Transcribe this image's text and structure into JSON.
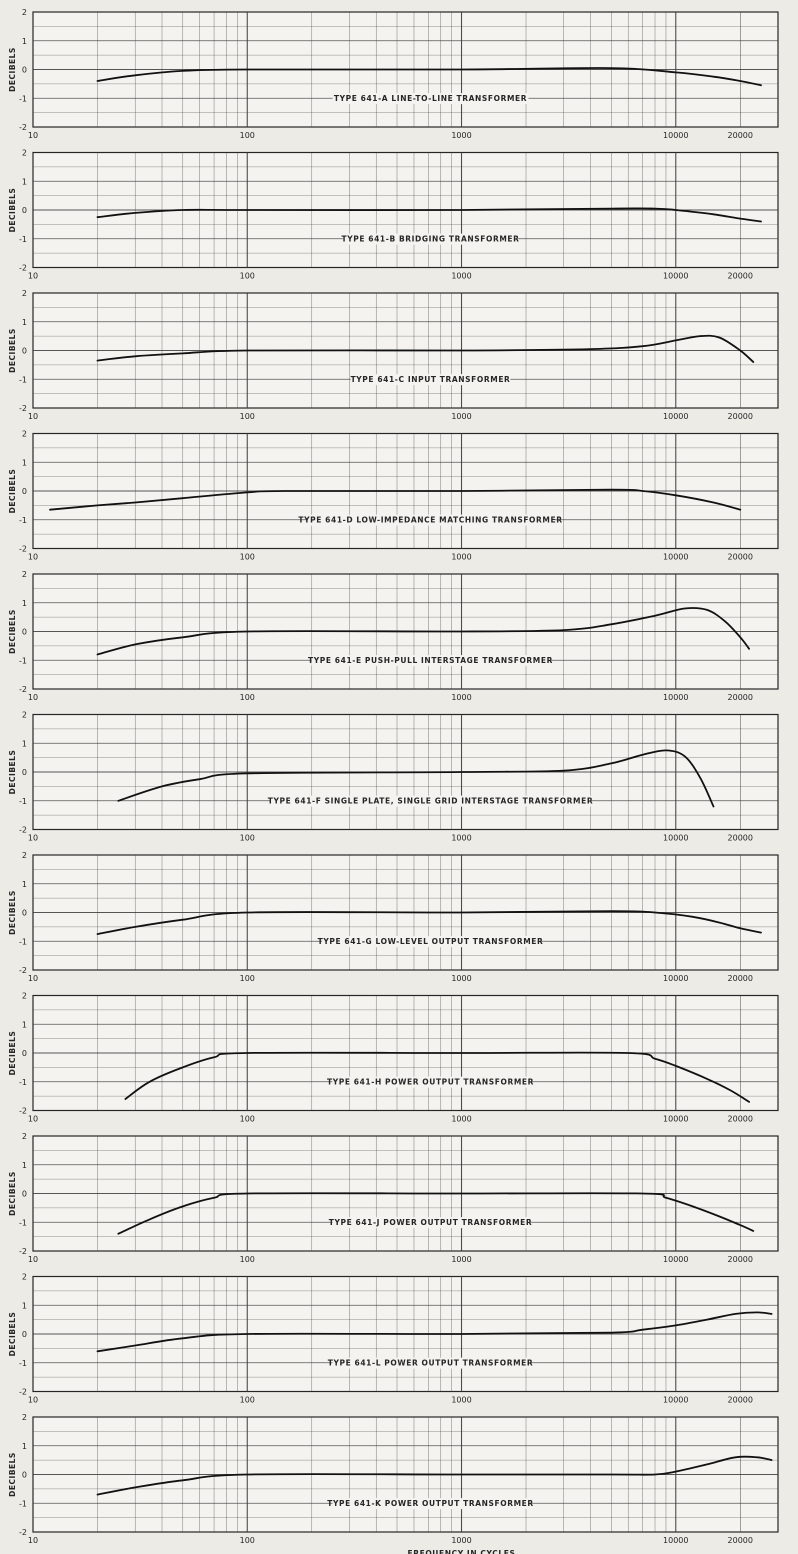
{
  "chart_data": [
    {
      "type": "line",
      "title": "TYPE 641-A LINE-TO-LINE TRANSFORMER",
      "ylabel": "DECIBELS",
      "xscale": "log",
      "xlim": [
        10,
        30000
      ],
      "ylim": [
        -2,
        2
      ],
      "yticks": [
        -2,
        -1,
        0,
        1,
        2
      ],
      "xticklabels": [
        "10",
        "100",
        "1000",
        "10000",
        "20000"
      ],
      "grid": true,
      "series": [
        {
          "x": [
            20,
            30,
            50,
            100,
            1000,
            5000,
            10000,
            15000,
            20000,
            25000
          ],
          "y": [
            -0.4,
            -0.2,
            -0.05,
            0.0,
            0.0,
            0.05,
            -0.1,
            -0.25,
            -0.4,
            -0.55
          ]
        }
      ]
    },
    {
      "type": "line",
      "title": "TYPE 641-B BRIDGING TRANSFORMER",
      "ylabel": "DECIBELS",
      "xscale": "log",
      "xlim": [
        10,
        30000
      ],
      "ylim": [
        -2,
        2
      ],
      "yticks": [
        -2,
        -1,
        0,
        1,
        2
      ],
      "xticklabels": [
        "10",
        "100",
        "1000",
        "10000",
        "20000"
      ],
      "grid": true,
      "series": [
        {
          "x": [
            20,
            30,
            50,
            100,
            1000,
            5000,
            8000,
            10000,
            15000,
            20000,
            25000
          ],
          "y": [
            -0.25,
            -0.1,
            0.0,
            0.0,
            0.0,
            0.05,
            0.05,
            0.0,
            -0.15,
            -0.3,
            -0.4
          ]
        }
      ]
    },
    {
      "type": "line",
      "title": "TYPE 641-C INPUT TRANSFORMER",
      "ylabel": "DECIBELS",
      "xscale": "log",
      "xlim": [
        10,
        30000
      ],
      "ylim": [
        -2,
        2
      ],
      "yticks": [
        -2,
        -1,
        0,
        1,
        2
      ],
      "xticklabels": [
        "10",
        "100",
        "1000",
        "10000",
        "20000"
      ],
      "grid": true,
      "series": [
        {
          "x": [
            20,
            30,
            50,
            100,
            1000,
            4000,
            7000,
            10000,
            13000,
            16000,
            20000,
            23000
          ],
          "y": [
            -0.35,
            -0.2,
            -0.1,
            0.0,
            0.0,
            0.05,
            0.15,
            0.35,
            0.5,
            0.45,
            0.0,
            -0.4
          ]
        }
      ]
    },
    {
      "type": "line",
      "title": "TYPE 641-D LOW-IMPEDANCE MATCHING TRANSFORMER",
      "ylabel": "DECIBELS",
      "xscale": "log",
      "xlim": [
        10,
        30000
      ],
      "ylim": [
        -2,
        2
      ],
      "yticks": [
        -2,
        -1,
        0,
        1,
        2
      ],
      "xticklabels": [
        "10",
        "100",
        "1000",
        "10000",
        "20000"
      ],
      "grid": true,
      "series": [
        {
          "x": [
            12,
            20,
            30,
            50,
            100,
            150,
            1000,
            5000,
            7000,
            10000,
            15000,
            20000
          ],
          "y": [
            -0.65,
            -0.5,
            -0.4,
            -0.25,
            -0.05,
            0.0,
            0.0,
            0.05,
            0.0,
            -0.15,
            -0.4,
            -0.65
          ]
        }
      ]
    },
    {
      "type": "line",
      "title": "TYPE 641-E PUSH-PULL INTERSTAGE TRANSFORMER",
      "ylabel": "DECIBELS",
      "xscale": "log",
      "xlim": [
        10,
        30000
      ],
      "ylim": [
        -2,
        2
      ],
      "yticks": [
        -2,
        -1,
        0,
        1,
        2
      ],
      "xticklabels": [
        "10",
        "100",
        "1000",
        "10000",
        "20000"
      ],
      "grid": true,
      "series": [
        {
          "x": [
            20,
            30,
            50,
            100,
            1000,
            3000,
            5000,
            8000,
            11000,
            14000,
            17000,
            20000,
            22000
          ],
          "y": [
            -0.8,
            -0.45,
            -0.2,
            0.0,
            0.0,
            0.05,
            0.25,
            0.55,
            0.8,
            0.75,
            0.35,
            -0.2,
            -0.6
          ]
        }
      ]
    },
    {
      "type": "line",
      "title": "TYPE 641-F SINGLE PLATE, SINGLE GRID INTERSTAGE TRANSFORMER",
      "ylabel": "DECIBELS",
      "xscale": "log",
      "xlim": [
        10,
        30000
      ],
      "ylim": [
        -2,
        2
      ],
      "yticks": [
        -2,
        -1,
        0,
        1,
        2
      ],
      "xticklabels": [
        "10",
        "100",
        "1000",
        "10000",
        "20000"
      ],
      "grid": true,
      "series": [
        {
          "x": [
            25,
            40,
            60,
            100,
            1000,
            3000,
            5000,
            7000,
            9000,
            11000,
            13000,
            15000
          ],
          "y": [
            -1.0,
            -0.5,
            -0.25,
            -0.05,
            0.0,
            0.05,
            0.3,
            0.6,
            0.75,
            0.55,
            -0.2,
            -1.2
          ]
        }
      ]
    },
    {
      "type": "line",
      "title": "TYPE 641-G LOW-LEVEL OUTPUT TRANSFORMER",
      "ylabel": "DECIBELS",
      "xscale": "log",
      "xlim": [
        10,
        30000
      ],
      "ylim": [
        -2,
        2
      ],
      "yticks": [
        -2,
        -1,
        0,
        1,
        2
      ],
      "xticklabels": [
        "10",
        "100",
        "1000",
        "10000",
        "20000"
      ],
      "grid": true,
      "series": [
        {
          "x": [
            20,
            30,
            50,
            100,
            1000,
            5000,
            8000,
            12000,
            16000,
            20000,
            25000
          ],
          "y": [
            -0.75,
            -0.5,
            -0.25,
            0.0,
            0.0,
            0.05,
            0.0,
            -0.15,
            -0.35,
            -0.55,
            -0.7
          ]
        }
      ]
    },
    {
      "type": "line",
      "title": "TYPE 641-H POWER OUTPUT TRANSFORMER",
      "ylabel": "DECIBELS",
      "xscale": "log",
      "xlim": [
        10,
        30000
      ],
      "ylim": [
        -2,
        2
      ],
      "yticks": [
        -2,
        -1,
        0,
        1,
        2
      ],
      "xticklabels": [
        "10",
        "100",
        "1000",
        "10000",
        "20000"
      ],
      "grid": true,
      "series": [
        {
          "x": [
            27,
            35,
            50,
            70,
            100,
            1000,
            6000,
            8000,
            10000,
            14000,
            18000,
            22000
          ],
          "y": [
            -1.6,
            -1.0,
            -0.5,
            -0.15,
            0.0,
            0.0,
            0.0,
            -0.2,
            -0.45,
            -0.9,
            -1.3,
            -1.7
          ]
        }
      ]
    },
    {
      "type": "line",
      "title": "TYPE 641-J POWER OUTPUT TRANSFORMER",
      "ylabel": "DECIBELS",
      "xscale": "log",
      "xlim": [
        10,
        30000
      ],
      "ylim": [
        -2,
        2
      ],
      "yticks": [
        -2,
        -1,
        0,
        1,
        2
      ],
      "xticklabels": [
        "10",
        "100",
        "1000",
        "10000",
        "20000"
      ],
      "grid": true,
      "series": [
        {
          "x": [
            25,
            35,
            50,
            70,
            100,
            1000,
            7000,
            9000,
            12000,
            16000,
            20000,
            23000
          ],
          "y": [
            -1.4,
            -0.9,
            -0.45,
            -0.15,
            0.0,
            0.0,
            0.0,
            -0.15,
            -0.45,
            -0.8,
            -1.1,
            -1.3
          ]
        }
      ]
    },
    {
      "type": "line",
      "title": "TYPE 641-L POWER OUTPUT TRANSFORMER",
      "ylabel": "DECIBELS",
      "xscale": "log",
      "xlim": [
        10,
        30000
      ],
      "ylim": [
        -2,
        2
      ],
      "yticks": [
        -2,
        -1,
        0,
        1,
        2
      ],
      "xticklabels": [
        "10",
        "100",
        "1000",
        "10000",
        "20000"
      ],
      "grid": true,
      "series": [
        {
          "x": [
            20,
            30,
            50,
            100,
            1000,
            5000,
            7000,
            10000,
            14000,
            19000,
            24000,
            28000
          ],
          "y": [
            -0.6,
            -0.4,
            -0.15,
            0.0,
            0.0,
            0.05,
            0.15,
            0.3,
            0.5,
            0.7,
            0.75,
            0.7
          ]
        }
      ]
    },
    {
      "type": "line",
      "title": "TYPE 641-K POWER OUTPUT TRANSFORMER",
      "ylabel": "DECIBELS",
      "xlabel": "FREQUENCY IN CYCLES",
      "xscale": "log",
      "xlim": [
        10,
        30000
      ],
      "ylim": [
        -2,
        2
      ],
      "yticks": [
        -2,
        -1,
        0,
        1,
        2
      ],
      "xticklabels": [
        "10",
        "100",
        "1000",
        "10000",
        "20000"
      ],
      "grid": true,
      "series": [
        {
          "x": [
            20,
            30,
            50,
            100,
            1000,
            5000,
            8000,
            10000,
            14000,
            19000,
            24000,
            28000
          ],
          "y": [
            -0.7,
            -0.45,
            -0.2,
            0.0,
            0.0,
            0.0,
            0.0,
            0.1,
            0.35,
            0.6,
            0.6,
            0.5
          ]
        }
      ]
    }
  ]
}
